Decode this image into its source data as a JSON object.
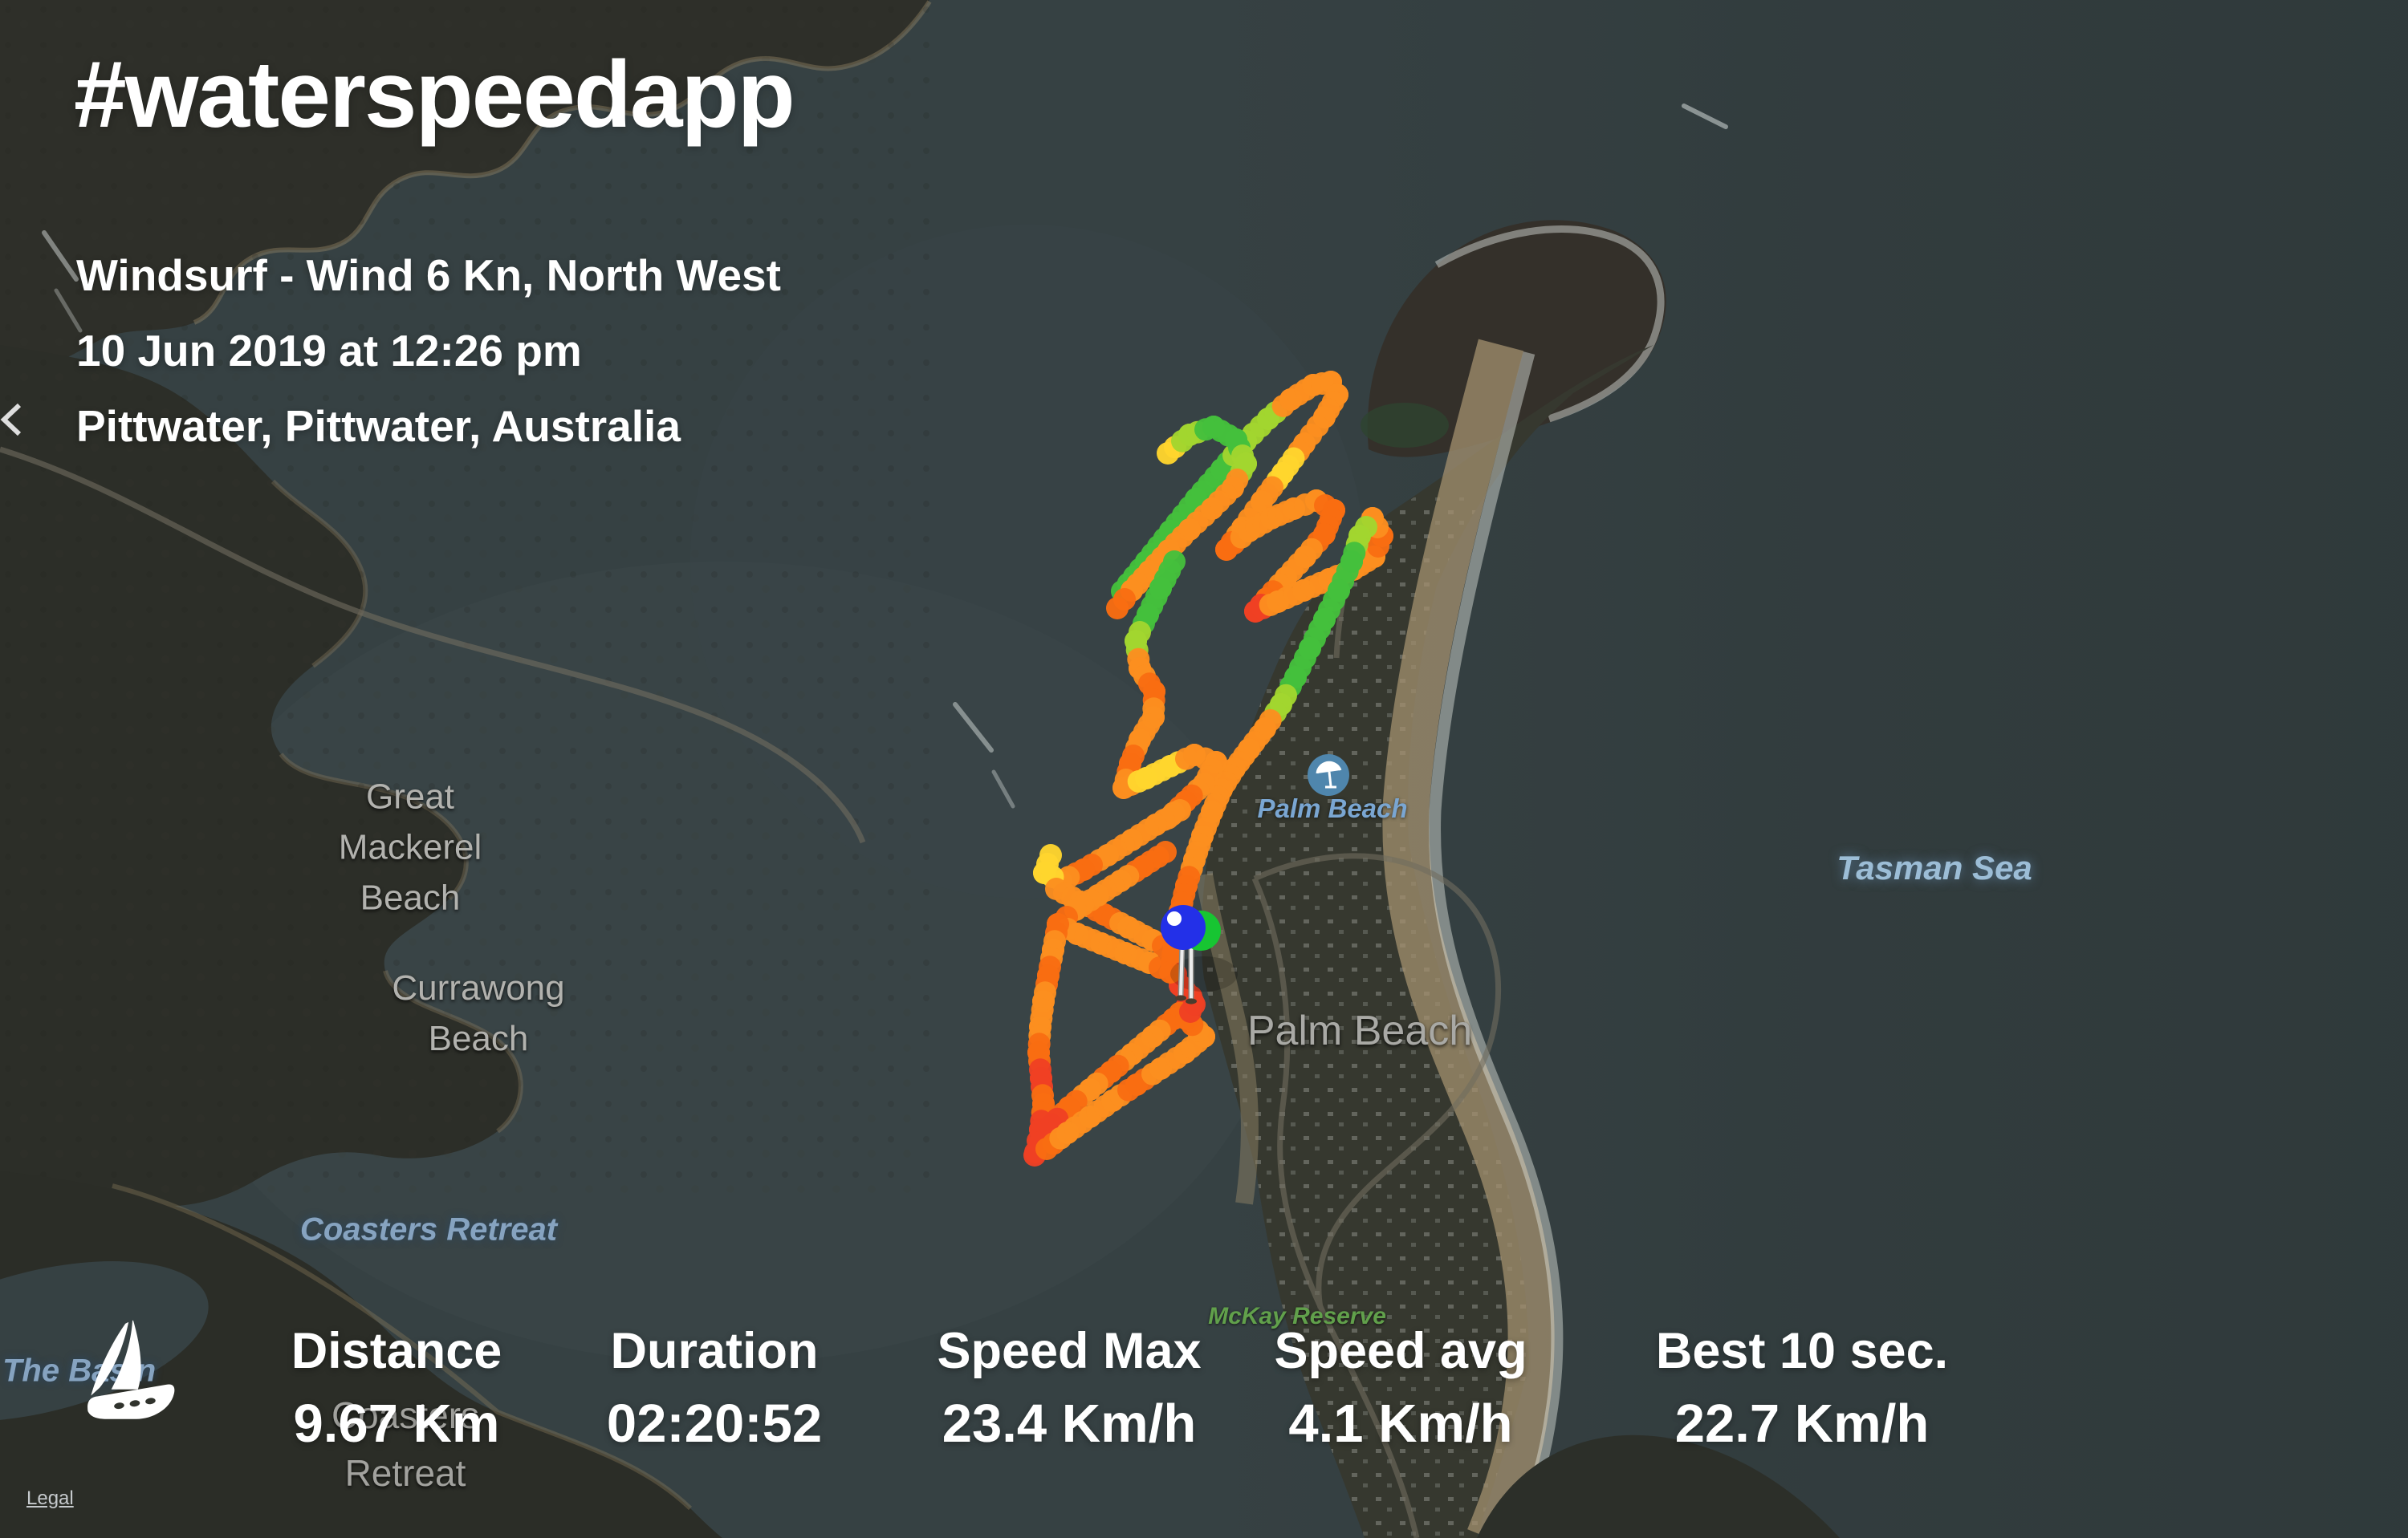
{
  "header": {
    "title": "#waterspeedapp",
    "subtitle": "Windsurf - Wind 6 Kn, North West\n10 Jun 2019 at 12:26 pm\nPittwater, Pittwater, Australia"
  },
  "stats": [
    {
      "label": "Distance",
      "value": "9.67 Km"
    },
    {
      "label": "Duration",
      "value": "02:20:52"
    },
    {
      "label": "Speed Max",
      "value": "23.4 Km/h"
    },
    {
      "label": "Speed avg",
      "value": "4.1 Km/h"
    },
    {
      "label": "Best 10 sec.",
      "value": "22.7 Km/h"
    }
  ],
  "footer": {
    "legal_label": "Legal"
  },
  "map": {
    "labels": [
      {
        "id": "great-mackerel-beach",
        "text": "Great\nMackerel\nBeach"
      },
      {
        "id": "currawong-beach",
        "text": "Currawong\nBeach"
      },
      {
        "id": "coasters-retreat-water",
        "text": "Coasters Retreat"
      },
      {
        "id": "coasters-retreat-land",
        "text": "Coasters\nRetreat"
      },
      {
        "id": "the-basin",
        "text": "The Basin"
      },
      {
        "id": "tasman-sea",
        "text": "Tasman Sea"
      },
      {
        "id": "mckay-reserve",
        "text": "McKay Reserve"
      },
      {
        "id": "palm-beach-small",
        "text": "Palm Beach"
      },
      {
        "id": "palm-beach-big",
        "text": "Palm Beach"
      }
    ]
  },
  "track": {
    "dot_radius": 14,
    "spacing": 12,
    "palette": {
      "G": "#45c03c",
      "L": "#a2d52f",
      "Y": "#ffd52e",
      "O": "#fc8f1f",
      "D": "#f96d12",
      "R": "#ef4123"
    },
    "segments": [
      [
        [
          1398,
          737,
          "G"
        ],
        [
          1428,
          700,
          "G"
        ],
        [
          1458,
          662,
          "G"
        ],
        [
          1490,
          622,
          "G"
        ],
        [
          1522,
          585,
          "G"
        ],
        [
          1552,
          550,
          "L"
        ],
        [
          1580,
          522,
          "L"
        ],
        [
          1608,
          498,
          "O"
        ],
        [
          1636,
          480,
          "O"
        ],
        [
          1658,
          476,
          "O"
        ],
        [
          1666,
          492,
          "O"
        ],
        [
          1650,
          520,
          "O"
        ],
        [
          1625,
          553,
          "O"
        ],
        [
          1598,
          590,
          "Y"
        ],
        [
          1572,
          625,
          "O"
        ],
        [
          1548,
          658,
          "O"
        ],
        [
          1528,
          685,
          "D"
        ]
      ],
      [
        [
          1455,
          565,
          "Y"
        ],
        [
          1482,
          542,
          "L"
        ],
        [
          1512,
          532,
          "G"
        ],
        [
          1540,
          548,
          "G"
        ],
        [
          1552,
          578,
          "L"
        ],
        [
          1536,
          608,
          "O"
        ],
        [
          1510,
          634,
          "O"
        ],
        [
          1482,
          660,
          "O"
        ],
        [
          1456,
          686,
          "O"
        ],
        [
          1432,
          712,
          "O"
        ],
        [
          1410,
          736,
          "O"
        ],
        [
          1392,
          758,
          "D"
        ]
      ],
      [
        [
          1528,
          685,
          "D"
        ],
        [
          1556,
          662,
          "O"
        ],
        [
          1584,
          646,
          "O"
        ],
        [
          1612,
          634,
          "O"
        ],
        [
          1640,
          624,
          "O"
        ],
        [
          1662,
          636,
          "D"
        ],
        [
          1650,
          666,
          "D"
        ],
        [
          1626,
          694,
          "O"
        ],
        [
          1602,
          720,
          "O"
        ],
        [
          1578,
          746,
          "D"
        ],
        [
          1564,
          762,
          "R"
        ],
        [
          1592,
          750,
          "O"
        ],
        [
          1624,
          736,
          "O"
        ],
        [
          1656,
          722,
          "O"
        ],
        [
          1686,
          710,
          "O"
        ],
        [
          1712,
          694,
          "O"
        ],
        [
          1722,
          668,
          "D"
        ],
        [
          1710,
          646,
          "O"
        ],
        [
          1694,
          668,
          "L"
        ],
        [
          1684,
          700,
          "G"
        ],
        [
          1668,
          736,
          "G"
        ],
        [
          1650,
          772,
          "G"
        ],
        [
          1632,
          808,
          "G"
        ],
        [
          1614,
          844,
          "G"
        ],
        [
          1596,
          878,
          "L"
        ],
        [
          1576,
          908,
          "O"
        ],
        [
          1556,
          934,
          "O"
        ],
        [
          1538,
          958,
          "O"
        ],
        [
          1522,
          984,
          "O"
        ],
        [
          1510,
          1012,
          "O"
        ],
        [
          1498,
          1042,
          "O"
        ],
        [
          1488,
          1072,
          "O"
        ],
        [
          1478,
          1104,
          "D"
        ],
        [
          1470,
          1136,
          "D"
        ],
        [
          1464,
          1168,
          "O"
        ],
        [
          1460,
          1200,
          "D"
        ],
        [
          1470,
          1228,
          "R"
        ],
        [
          1484,
          1242,
          "R"
        ]
      ],
      [
        [
          1463,
          700,
          "G"
        ],
        [
          1446,
          733,
          "G"
        ],
        [
          1430,
          766,
          "G"
        ],
        [
          1415,
          799,
          "L"
        ],
        [
          1420,
          833,
          "O"
        ],
        [
          1438,
          862,
          "D"
        ],
        [
          1437,
          894,
          "O"
        ],
        [
          1420,
          922,
          "O"
        ],
        [
          1408,
          952,
          "D"
        ],
        [
          1400,
          982,
          "O"
        ]
      ],
      [
        [
          1400,
          982,
          "O"
        ],
        [
          1428,
          970,
          "Y"
        ],
        [
          1458,
          955,
          "Y"
        ],
        [
          1488,
          941,
          "O"
        ],
        [
          1515,
          950,
          "O"
        ],
        [
          1500,
          977,
          "O"
        ],
        [
          1477,
          999,
          "D"
        ],
        [
          1455,
          1020,
          "O"
        ]
      ],
      [
        [
          1470,
          1010,
          "O"
        ],
        [
          1440,
          1028,
          "O"
        ],
        [
          1410,
          1047,
          "O"
        ],
        [
          1380,
          1066,
          "O"
        ],
        [
          1350,
          1084,
          "D"
        ],
        [
          1322,
          1098,
          "O"
        ],
        [
          1301,
          1088,
          "Y"
        ],
        [
          1309,
          1066,
          "Y"
        ]
      ],
      [
        [
          1316,
          1108,
          "O"
        ],
        [
          1346,
          1124,
          "O"
        ],
        [
          1376,
          1140,
          "D"
        ],
        [
          1406,
          1156,
          "O"
        ],
        [
          1436,
          1172,
          "O"
        ],
        [
          1462,
          1186,
          "D"
        ]
      ],
      [
        [
          1452,
          1062,
          "D"
        ],
        [
          1424,
          1080,
          "D"
        ],
        [
          1396,
          1098,
          "O"
        ],
        [
          1368,
          1116,
          "O"
        ],
        [
          1340,
          1134,
          "O"
        ],
        [
          1318,
          1152,
          "D"
        ],
        [
          1342,
          1164,
          "O"
        ],
        [
          1372,
          1176,
          "O"
        ],
        [
          1402,
          1188,
          "O"
        ],
        [
          1432,
          1200,
          "O"
        ],
        [
          1458,
          1212,
          "D"
        ]
      ],
      [
        [
          1318,
          1152,
          "D"
        ],
        [
          1312,
          1184,
          "O"
        ],
        [
          1306,
          1216,
          "D"
        ],
        [
          1300,
          1248,
          "O"
        ],
        [
          1296,
          1280,
          "O"
        ],
        [
          1294,
          1312,
          "D"
        ],
        [
          1297,
          1344,
          "R"
        ],
        [
          1300,
          1376,
          "D"
        ],
        [
          1296,
          1408,
          "R"
        ],
        [
          1290,
          1436,
          "R"
        ]
      ],
      [
        [
          1486,
          1248,
          "R"
        ],
        [
          1462,
          1270,
          "D"
        ],
        [
          1436,
          1292,
          "O"
        ],
        [
          1410,
          1314,
          "O"
        ],
        [
          1384,
          1336,
          "D"
        ],
        [
          1358,
          1358,
          "O"
        ],
        [
          1332,
          1380,
          "D"
        ],
        [
          1310,
          1402,
          "R"
        ],
        [
          1296,
          1424,
          "R"
        ],
        [
          1289,
          1440,
          "R"
        ]
      ],
      [
        [
          1304,
          1432,
          "D"
        ],
        [
          1330,
          1412,
          "O"
        ],
        [
          1358,
          1392,
          "O"
        ],
        [
          1386,
          1372,
          "O"
        ],
        [
          1416,
          1352,
          "D"
        ],
        [
          1446,
          1332,
          "O"
        ],
        [
          1476,
          1312,
          "O"
        ],
        [
          1500,
          1292,
          "O"
        ],
        [
          1478,
          1270,
          "D"
        ],
        [
          1488,
          1252,
          "R"
        ]
      ]
    ]
  },
  "pin": {
    "fill_primary": "#2330e8",
    "fill_secondary": "#17c532"
  }
}
